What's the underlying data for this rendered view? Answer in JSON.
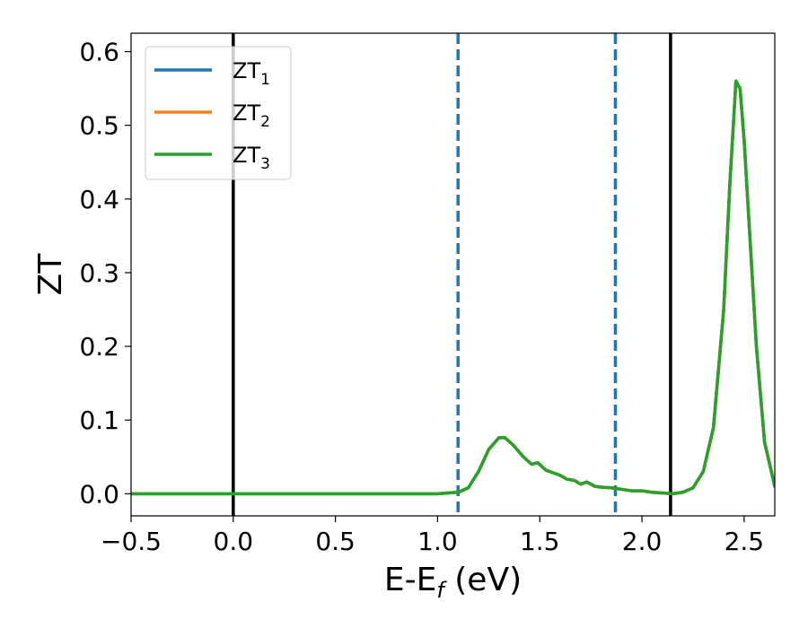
{
  "chart_data": {
    "type": "line",
    "xlabel": "E-E_f (eV)",
    "xlabel_main": "E-E",
    "xlabel_sub": "f",
    "xlabel_unit": " (eV)",
    "ylabel": "ZT",
    "xlim": [
      -0.5,
      2.65
    ],
    "ylim": [
      -0.03,
      0.625
    ],
    "xticks": [
      -0.5,
      0.0,
      0.5,
      1.0,
      1.5,
      2.0,
      2.5
    ],
    "xtick_labels": [
      "−0.5",
      "0.0",
      "0.5",
      "1.0",
      "1.5",
      "2.0",
      "2.5"
    ],
    "yticks": [
      0.0,
      0.1,
      0.2,
      0.3,
      0.4,
      0.5,
      0.6
    ],
    "ytick_labels": [
      "0.0",
      "0.1",
      "0.2",
      "0.3",
      "0.4",
      "0.5",
      "0.6"
    ],
    "grid": false,
    "legend_position": "top-left",
    "vlines": [
      {
        "x": 0.0,
        "style": "solid",
        "color": "#000000"
      },
      {
        "x": 2.14,
        "style": "solid",
        "color": "#000000"
      },
      {
        "x": 1.1,
        "style": "dashed",
        "color": "#1f77b4"
      },
      {
        "x": 1.87,
        "style": "dashed",
        "color": "#1f77b4"
      }
    ],
    "series": [
      {
        "name": "ZT",
        "name_main": "ZT",
        "name_sub": "1",
        "color": "#1f77b4",
        "points": [
          [
            -0.5,
            0
          ],
          [
            1.0,
            0
          ],
          [
            1.1,
            0.002
          ],
          [
            1.15,
            0.008
          ],
          [
            1.2,
            0.03
          ],
          [
            1.25,
            0.06
          ],
          [
            1.3,
            0.076
          ],
          [
            1.33,
            0.076
          ],
          [
            1.37,
            0.066
          ],
          [
            1.42,
            0.05
          ],
          [
            1.46,
            0.04
          ],
          [
            1.49,
            0.042
          ],
          [
            1.53,
            0.032
          ],
          [
            1.57,
            0.028
          ],
          [
            1.6,
            0.025
          ],
          [
            1.63,
            0.02
          ],
          [
            1.67,
            0.018
          ],
          [
            1.7,
            0.013
          ],
          [
            1.73,
            0.016
          ],
          [
            1.77,
            0.01
          ],
          [
            1.8,
            0.009
          ],
          [
            1.85,
            0.008
          ],
          [
            1.9,
            0.006
          ],
          [
            1.95,
            0.004
          ],
          [
            2.0,
            0.004
          ],
          [
            2.05,
            0.002
          ],
          [
            2.1,
            0.001
          ],
          [
            2.15,
            0.0
          ],
          [
            2.2,
            0.002
          ],
          [
            2.25,
            0.008
          ],
          [
            2.3,
            0.03
          ],
          [
            2.35,
            0.09
          ],
          [
            2.4,
            0.25
          ],
          [
            2.43,
            0.42
          ],
          [
            2.46,
            0.56
          ],
          [
            2.48,
            0.55
          ],
          [
            2.5,
            0.48
          ],
          [
            2.53,
            0.34
          ],
          [
            2.56,
            0.2
          ],
          [
            2.6,
            0.07
          ],
          [
            2.65,
            0.01
          ]
        ]
      },
      {
        "name": "ZT",
        "name_main": "ZT",
        "name_sub": "2",
        "color": "#ff7f0e",
        "points": [
          [
            -0.5,
            0
          ],
          [
            1.0,
            0
          ],
          [
            1.1,
            0.002
          ],
          [
            1.15,
            0.008
          ],
          [
            1.2,
            0.03
          ],
          [
            1.25,
            0.06
          ],
          [
            1.3,
            0.076
          ],
          [
            1.33,
            0.076
          ],
          [
            1.37,
            0.066
          ],
          [
            1.42,
            0.05
          ],
          [
            1.46,
            0.04
          ],
          [
            1.49,
            0.042
          ],
          [
            1.53,
            0.032
          ],
          [
            1.57,
            0.028
          ],
          [
            1.6,
            0.025
          ],
          [
            1.63,
            0.02
          ],
          [
            1.67,
            0.018
          ],
          [
            1.7,
            0.013
          ],
          [
            1.73,
            0.016
          ],
          [
            1.77,
            0.01
          ],
          [
            1.8,
            0.009
          ],
          [
            1.85,
            0.008
          ],
          [
            1.9,
            0.006
          ],
          [
            1.95,
            0.004
          ],
          [
            2.0,
            0.004
          ],
          [
            2.05,
            0.002
          ],
          [
            2.1,
            0.001
          ],
          [
            2.15,
            0.0
          ],
          [
            2.2,
            0.002
          ],
          [
            2.25,
            0.008
          ],
          [
            2.3,
            0.03
          ],
          [
            2.35,
            0.09
          ],
          [
            2.4,
            0.25
          ],
          [
            2.43,
            0.42
          ],
          [
            2.46,
            0.56
          ],
          [
            2.48,
            0.55
          ],
          [
            2.5,
            0.48
          ],
          [
            2.53,
            0.34
          ],
          [
            2.56,
            0.2
          ],
          [
            2.6,
            0.07
          ],
          [
            2.65,
            0.01
          ]
        ]
      },
      {
        "name": "ZT",
        "name_main": "ZT",
        "name_sub": "3",
        "color": "#2ca02c",
        "points": [
          [
            -0.5,
            0
          ],
          [
            1.0,
            0
          ],
          [
            1.1,
            0.002
          ],
          [
            1.15,
            0.008
          ],
          [
            1.2,
            0.03
          ],
          [
            1.25,
            0.06
          ],
          [
            1.3,
            0.076
          ],
          [
            1.33,
            0.076
          ],
          [
            1.37,
            0.066
          ],
          [
            1.42,
            0.05
          ],
          [
            1.46,
            0.04
          ],
          [
            1.49,
            0.042
          ],
          [
            1.53,
            0.032
          ],
          [
            1.57,
            0.028
          ],
          [
            1.6,
            0.025
          ],
          [
            1.63,
            0.02
          ],
          [
            1.67,
            0.018
          ],
          [
            1.7,
            0.013
          ],
          [
            1.73,
            0.016
          ],
          [
            1.77,
            0.01
          ],
          [
            1.8,
            0.009
          ],
          [
            1.85,
            0.008
          ],
          [
            1.9,
            0.006
          ],
          [
            1.95,
            0.004
          ],
          [
            2.0,
            0.004
          ],
          [
            2.05,
            0.002
          ],
          [
            2.1,
            0.001
          ],
          [
            2.15,
            0.0
          ],
          [
            2.2,
            0.002
          ],
          [
            2.25,
            0.008
          ],
          [
            2.3,
            0.03
          ],
          [
            2.35,
            0.09
          ],
          [
            2.4,
            0.25
          ],
          [
            2.43,
            0.42
          ],
          [
            2.46,
            0.56
          ],
          [
            2.48,
            0.55
          ],
          [
            2.5,
            0.48
          ],
          [
            2.53,
            0.34
          ],
          [
            2.56,
            0.2
          ],
          [
            2.6,
            0.07
          ],
          [
            2.65,
            0.01
          ]
        ]
      }
    ]
  }
}
